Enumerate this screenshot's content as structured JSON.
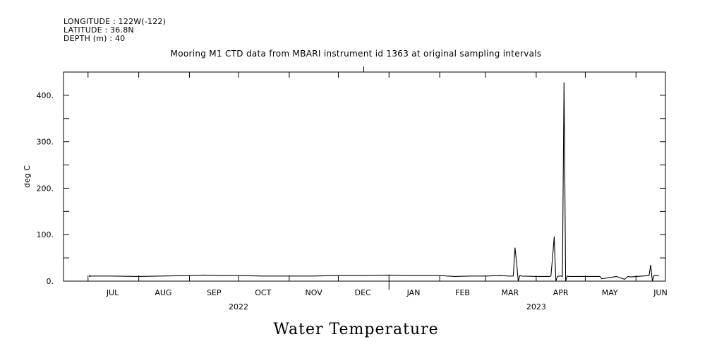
{
  "header": {
    "longitude": "LONGITUDE : 122W(-122)",
    "latitude": "LATITUDE : 36.8N",
    "depth": "DEPTH (m) : 40"
  },
  "title": "Mooring M1 CTD data from MBARI instrument id 1363 at original sampling intervals",
  "bottom_title": "Water Temperature",
  "chart_data": {
    "type": "line",
    "title": "Mooring M1 CTD data from MBARI instrument id 1363 at original sampling intervals",
    "ylabel": "deg C",
    "xlabel": "",
    "ylim": [
      0,
      450
    ],
    "xlim": [
      "2022-06-16",
      "2023-06-19"
    ],
    "yticks": [
      0,
      100,
      200,
      300,
      400
    ],
    "ytick_labels": [
      "0.",
      "100.",
      "200.",
      "300.",
      "400."
    ],
    "month_labels": [
      {
        "label": "JUL",
        "date": "2022-07-16"
      },
      {
        "label": "AUG",
        "date": "2022-08-16"
      },
      {
        "label": "SEP",
        "date": "2022-09-16"
      },
      {
        "label": "OCT",
        "date": "2022-10-16"
      },
      {
        "label": "NOV",
        "date": "2022-11-16"
      },
      {
        "label": "DEC",
        "date": "2022-12-16"
      },
      {
        "label": "JAN",
        "date": "2023-01-16"
      },
      {
        "label": "FEB",
        "date": "2023-02-15"
      },
      {
        "label": "MAR",
        "date": "2023-03-16"
      },
      {
        "label": "APR",
        "date": "2023-04-16"
      },
      {
        "label": "MAY",
        "date": "2023-05-16"
      },
      {
        "label": "JUN",
        "date": "2023-06-16"
      }
    ],
    "year_labels": [
      {
        "label": "2022",
        "date": "2022-10-01"
      },
      {
        "label": "2023",
        "date": "2023-04-01"
      }
    ],
    "series": [
      {
        "x": [
          "2022-07-02",
          "2022-07-02",
          "2022-07-03",
          "2022-07-15",
          "2022-08-01",
          "2022-08-15",
          "2022-09-01",
          "2022-09-10",
          "2022-09-20",
          "2022-10-01",
          "2022-10-15",
          "2022-11-01",
          "2022-11-15",
          "2022-12-01",
          "2022-12-15",
          "2023-01-01",
          "2023-01-15",
          "2023-02-01",
          "2023-02-10",
          "2023-02-20",
          "2023-03-01",
          "2023-03-10",
          "2023-03-15",
          "2023-03-18",
          "2023-03-19",
          "2023-03-20",
          "2023-03-21",
          "2023-03-22",
          "2023-03-23",
          "2023-04-01",
          "2023-04-08",
          "2023-04-09",
          "2023-04-10",
          "2023-04-11",
          "2023-04-12",
          "2023-04-13",
          "2023-04-14",
          "2023-04-15",
          "2023-04-16",
          "2023-04-17",
          "2023-04-18",
          "2023-04-19",
          "2023-04-20",
          "2023-04-21",
          "2023-05-01",
          "2023-05-10",
          "2023-05-11",
          "2023-05-20",
          "2023-05-25",
          "2023-05-27",
          "2023-05-29",
          "2023-06-05",
          "2023-06-09",
          "2023-06-10",
          "2023-06-11",
          "2023-06-12",
          "2023-06-15"
        ],
        "values": [
          14,
          10,
          11,
          11,
          10,
          11,
          12,
          13,
          12,
          12,
          11,
          11,
          11,
          12,
          12,
          13,
          12,
          12,
          10,
          11,
          11,
          12,
          11,
          11,
          72,
          40,
          0,
          12,
          11,
          10,
          10,
          10,
          11,
          52,
          96,
          0,
          10,
          11,
          11,
          10,
          428,
          0,
          11,
          10,
          10,
          10,
          5,
          10,
          4,
          10,
          9,
          11,
          12,
          35,
          0,
          12,
          12
        ]
      }
    ]
  }
}
